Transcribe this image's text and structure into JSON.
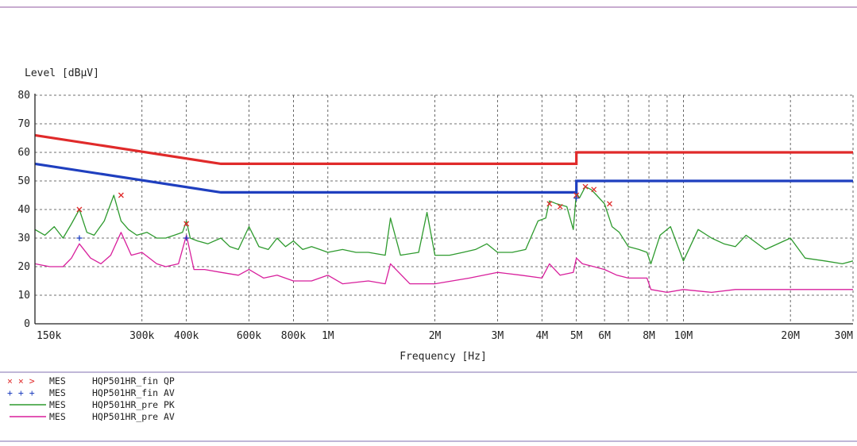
{
  "chart_data": {
    "type": "line",
    "title": "",
    "ylabel": "Level [dBµV]",
    "xlabel": "Frequency [Hz]",
    "x_scale": "log",
    "xlim": [
      150000,
      30000000
    ],
    "ylim": [
      0,
      80
    ],
    "y_ticks": [
      0,
      10,
      20,
      30,
      40,
      50,
      60,
      70,
      80
    ],
    "x_ticks": [
      {
        "value": 150000,
        "label": "150k"
      },
      {
        "value": 300000,
        "label": "300k"
      },
      {
        "value": 400000,
        "label": "400k"
      },
      {
        "value": 600000,
        "label": "600k"
      },
      {
        "value": 800000,
        "label": "800k"
      },
      {
        "value": 1000000,
        "label": "1M"
      },
      {
        "value": 2000000,
        "label": "2M"
      },
      {
        "value": 3000000,
        "label": "3M"
      },
      {
        "value": 4000000,
        "label": "4M"
      },
      {
        "value": 5000000,
        "label": "5M"
      },
      {
        "value": 6000000,
        "label": "6M"
      },
      {
        "value": 8000000,
        "label": "8M"
      },
      {
        "value": 10000000,
        "label": "10M"
      },
      {
        "value": 20000000,
        "label": "20M"
      },
      {
        "value": 30000000,
        "label": "30M"
      }
    ],
    "grid": true,
    "legend_position": "bottom-left",
    "limit_lines": [
      {
        "color": "#e02a2a",
        "x": [
          150000,
          500000,
          5000000,
          5000000,
          30000000
        ],
        "y": [
          66,
          56,
          56,
          60,
          60
        ]
      },
      {
        "color": "#1f3fbf",
        "x": [
          150000,
          500000,
          5000000,
          5000000,
          30000000
        ],
        "y": [
          56,
          46,
          46,
          50,
          50
        ]
      }
    ],
    "series": [
      {
        "name": "HQP501HR_pre PK",
        "color": "#2e9a2e",
        "x": [
          150000,
          160000,
          170000,
          180000,
          190000,
          200000,
          210000,
          220000,
          235000,
          250000,
          262000,
          275000,
          290000,
          310000,
          330000,
          350000,
          370000,
          390000,
          400000,
          410000,
          430000,
          460000,
          500000,
          530000,
          560000,
          600000,
          640000,
          680000,
          720000,
          760000,
          800000,
          850000,
          900000,
          950000,
          1000000,
          1100000,
          1200000,
          1300000,
          1450000,
          1500000,
          1600000,
          1800000,
          1900000,
          2000000,
          2200000,
          2400000,
          2600000,
          2800000,
          3000000,
          3300000,
          3600000,
          3900000,
          4100000,
          4200000,
          4400000,
          4700000,
          4900000,
          5000000,
          5100000,
          5300000,
          5500000,
          5700000,
          6000000,
          6300000,
          6600000,
          7000000,
          7500000,
          7900000,
          8100000,
          8600000,
          9200000,
          10000000,
          11000000,
          12000000,
          13000000,
          14000000,
          15000000,
          17000000,
          20000000,
          22000000,
          25000000,
          28000000,
          30000000
        ],
        "y": [
          33,
          31,
          34,
          30,
          35,
          40,
          32,
          31,
          36,
          45,
          36,
          33,
          31,
          32,
          30,
          30,
          31,
          32,
          36,
          30,
          29,
          28,
          30,
          27,
          26,
          34,
          27,
          26,
          30,
          27,
          29,
          26,
          27,
          26,
          25,
          26,
          25,
          25,
          24,
          37,
          24,
          25,
          39,
          24,
          24,
          25,
          26,
          28,
          25,
          25,
          26,
          36,
          37,
          43,
          42,
          41,
          33,
          46,
          44,
          48,
          47,
          45,
          42,
          34,
          32,
          27,
          26,
          25,
          21,
          31,
          34,
          22,
          33,
          30,
          28,
          27,
          31,
          26,
          30,
          23,
          22,
          21,
          22
        ]
      },
      {
        "name": "HQP501HR_pre AV",
        "color": "#d81f9c",
        "x": [
          150000,
          165000,
          180000,
          190000,
          200000,
          215000,
          230000,
          245000,
          262000,
          280000,
          300000,
          330000,
          350000,
          380000,
          400000,
          420000,
          450000,
          500000,
          560000,
          600000,
          660000,
          720000,
          800000,
          900000,
          1000000,
          1100000,
          1300000,
          1450000,
          1500000,
          1700000,
          2000000,
          2500000,
          3000000,
          3500000,
          4000000,
          4200000,
          4500000,
          4900000,
          5000000,
          5200000,
          5600000,
          6000000,
          6500000,
          7000000,
          7900000,
          8100000,
          9000000,
          10000000,
          12000000,
          14000000,
          17000000,
          20000000,
          25000000,
          30000000
        ],
        "y": [
          21,
          20,
          20,
          23,
          28,
          23,
          21,
          24,
          32,
          24,
          25,
          21,
          20,
          21,
          31,
          19,
          19,
          18,
          17,
          19,
          16,
          17,
          15,
          15,
          17,
          14,
          15,
          14,
          21,
          14,
          14,
          16,
          18,
          17,
          16,
          21,
          17,
          18,
          23,
          21,
          20,
          19,
          17,
          16,
          16,
          12,
          11,
          12,
          11,
          12,
          12,
          12,
          12,
          12
        ]
      }
    ],
    "markers": [
      {
        "name": "HQP501HR_fin QP",
        "symbol": "x",
        "color": "#e02a2a",
        "points": [
          [
            200000,
            40
          ],
          [
            262000,
            45
          ],
          [
            400000,
            35
          ],
          [
            4200000,
            42
          ],
          [
            4500000,
            41
          ],
          [
            5000000,
            45
          ],
          [
            5300000,
            48
          ],
          [
            5600000,
            47
          ],
          [
            6200000,
            42
          ]
        ]
      },
      {
        "name": "HQP501HR_fin AV",
        "symbol": "+",
        "color": "#1f3fbf",
        "points": [
          [
            200000,
            30
          ],
          [
            400000,
            30
          ],
          [
            5000000,
            44
          ]
        ]
      }
    ]
  },
  "legend": [
    {
      "symbols": "× × >",
      "prefix": "MES",
      "label": "HQP501HR_fin QP",
      "color": "#e02a2a",
      "kind": "marker"
    },
    {
      "symbols": "+ + +",
      "prefix": "MES",
      "label": "HQP501HR_fin AV",
      "color": "#1f3fbf",
      "kind": "marker"
    },
    {
      "symbols": "",
      "prefix": "MES",
      "label": "HQP501HR_pre PK",
      "color": "#2e9a2e",
      "kind": "line"
    },
    {
      "symbols": "",
      "prefix": "MES",
      "label": "HQP501HR_pre AV",
      "color": "#d81f9c",
      "kind": "line"
    }
  ],
  "colors": {
    "frame_top": "#a77ab5",
    "frame_bottom": "#9b8cc0",
    "grid": "#444444"
  }
}
